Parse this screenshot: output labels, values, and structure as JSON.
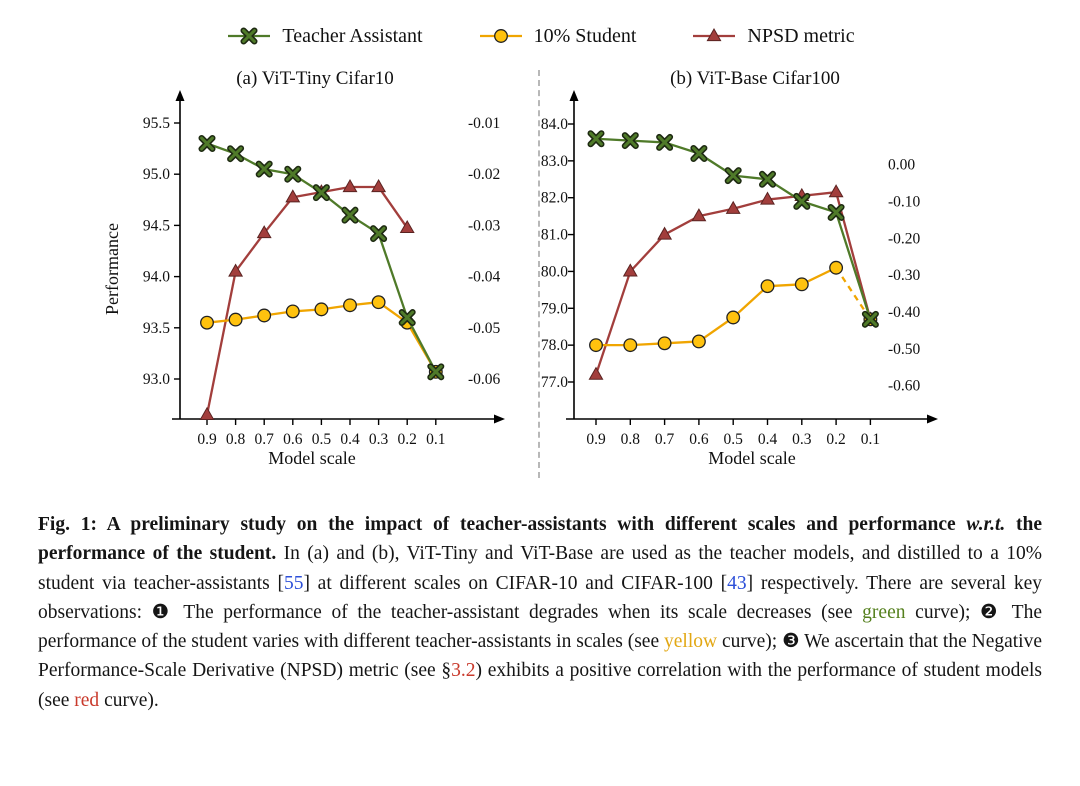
{
  "legend": {
    "items": [
      {
        "label": "Teacher Assistant",
        "marker": "x-cross",
        "color": "#4f7a29",
        "line_color": "#4f7a29"
      },
      {
        "label": "10% Student",
        "marker": "circle",
        "color": "#ffc20e",
        "line_color": "#f0a500"
      },
      {
        "label": "NPSD metric",
        "marker": "triangle",
        "color": "#a23e3c",
        "line_color": "#a23e3c"
      }
    ]
  },
  "colors": {
    "teacher_assistant_green": "#4f7a29",
    "student_yellow": "#ffc20e",
    "student_line_orange": "#f0a500",
    "npsd_red": "#a23e3c",
    "citation_blue": "#2c4fd8",
    "link_red": "#c93a2c",
    "divider_gray": "#b8b8b8"
  },
  "chart_data": [
    {
      "type": "line",
      "title": "(a) ViT-Tiny Cifar10",
      "xlabel": "Model scale",
      "ylabel": "Performance",
      "x_values": [
        0.9,
        0.8,
        0.7,
        0.6,
        0.5,
        0.4,
        0.3,
        0.2,
        0.1
      ],
      "x_ticks": [
        "0.9",
        "0.8",
        "0.7",
        "0.6",
        "0.5",
        "0.4",
        "0.3",
        "0.2",
        "0.1"
      ],
      "left_axis": {
        "ticks": [
          "95.5",
          "95.0",
          "94.5",
          "94.0",
          "93.5",
          "93.0"
        ],
        "tick_values": [
          95.5,
          95.0,
          94.5,
          94.0,
          93.5,
          93.0
        ],
        "range": [
          92.6,
          95.8
        ]
      },
      "right_axis": {
        "ticks": [
          "-0.01",
          "-0.02",
          "-0.03",
          "-0.04",
          "-0.05",
          "-0.06"
        ],
        "tick_values": [
          -0.01,
          -0.02,
          -0.03,
          -0.04,
          -0.05,
          -0.06
        ],
        "left_equiv_slope": 50,
        "left_equiv_intercept": 96
      },
      "series": [
        {
          "name": "NPSD metric",
          "axis": "right",
          "marker": "triangle",
          "color": "#a23e3c",
          "x": [
            0.9,
            0.8,
            0.7,
            0.6,
            0.5,
            0.4,
            0.3,
            0.2
          ],
          "values": [
            -0.067,
            -0.039,
            -0.0315,
            -0.0245,
            -0.0235,
            -0.0225,
            -0.0225,
            -0.0305
          ]
        },
        {
          "name": "10% Student",
          "axis": "left",
          "marker": "circle",
          "color": "#ffc20e",
          "line_color": "#f0a500",
          "values": [
            93.55,
            93.58,
            93.62,
            93.66,
            93.68,
            93.72,
            93.75,
            93.55,
            93.07
          ]
        },
        {
          "name": "Teacher Assistant",
          "axis": "left",
          "marker": "x-cross",
          "color": "#4f7a29",
          "values": [
            95.3,
            95.2,
            95.05,
            95.0,
            94.82,
            94.6,
            94.42,
            93.6,
            93.07
          ]
        }
      ]
    },
    {
      "type": "line",
      "title": "(b) ViT-Base Cifar100",
      "xlabel": "Model scale",
      "ylabel": "",
      "x_values": [
        0.9,
        0.8,
        0.7,
        0.6,
        0.5,
        0.4,
        0.3,
        0.2,
        0.1
      ],
      "x_ticks": [
        "0.9",
        "0.8",
        "0.7",
        "0.6",
        "0.5",
        "0.4",
        "0.3",
        "0.2",
        "0.1"
      ],
      "left_axis": {
        "ticks": [
          "84.0",
          "83.0",
          "82.0",
          "81.0",
          "80.0",
          "79.0",
          "78.0",
          "77.0"
        ],
        "tick_values": [
          84.0,
          83.0,
          82.0,
          81.0,
          80.0,
          79.0,
          78.0,
          77.0
        ],
        "range": [
          76.5,
          84.5
        ]
      },
      "right_axis": {
        "ticks": [
          "0.00",
          "-0.10",
          "-0.20",
          "-0.30",
          "-0.40",
          "-0.50",
          "-0.60"
        ],
        "tick_values": [
          0.0,
          -0.1,
          -0.2,
          -0.3,
          -0.4,
          -0.5,
          -0.6
        ],
        "left_equiv_slope": 10,
        "left_equiv_intercept": 82.9
      },
      "series": [
        {
          "name": "NPSD metric",
          "axis": "right",
          "marker": "triangle",
          "color": "#a23e3c",
          "values": [
            -0.57,
            -0.29,
            -0.19,
            -0.14,
            -0.12,
            -0.095,
            -0.085,
            -0.075,
            -0.42
          ]
        },
        {
          "name": "10% Student",
          "axis": "left",
          "marker": "circle",
          "color": "#ffc20e",
          "line_color": "#f0a500",
          "dash_from_index": 7,
          "values": [
            78.0,
            78.0,
            78.05,
            78.1,
            78.75,
            79.6,
            79.65,
            80.1,
            78.7
          ]
        },
        {
          "name": "Teacher Assistant",
          "axis": "left",
          "marker": "x-cross",
          "color": "#4f7a29",
          "values": [
            83.6,
            83.55,
            83.5,
            83.2,
            82.6,
            82.5,
            81.9,
            81.6,
            78.7
          ]
        }
      ]
    }
  ],
  "caption": {
    "segments": [
      {
        "style": "bold",
        "text": "Fig. 1: A preliminary study on the impact of teacher-assistants with different scales and performance "
      },
      {
        "style": "bolditalic",
        "text": "w.r.t."
      },
      {
        "style": "bold",
        "text": " the performance of the student."
      },
      {
        "style": "normal",
        "text": " In (a) and (b), ViT-Tiny and ViT-Base are used as the teacher models, and distilled to a 10% student via teacher-assistants ["
      },
      {
        "style": "blue",
        "text": "55",
        "name": "citation-link-55",
        "interactable": true
      },
      {
        "style": "normal",
        "text": "] at different scales on CIFAR-10 and CIFAR-100 ["
      },
      {
        "style": "blue",
        "text": "43",
        "name": "citation-link-43",
        "interactable": true
      },
      {
        "style": "normal",
        "text": "] respectively. There are several key observations: ❶ The performance of the teacher-assistant degrades when its scale decreases (see "
      },
      {
        "style": "green",
        "text": "green"
      },
      {
        "style": "normal",
        "text": " curve); ❷ The performance of the student varies with different teacher-assistants in scales (see "
      },
      {
        "style": "yellow",
        "text": "yellow"
      },
      {
        "style": "normal",
        "text": " curve); ❸ We ascertain that the Negative Performance-Scale Derivative (NPSD) metric (see §"
      },
      {
        "style": "red",
        "text": "3.2",
        "name": "section-link-3-2",
        "interactable": true
      },
      {
        "style": "normal",
        "text": ") exhibits a positive correlation with the performance of student models (see "
      },
      {
        "style": "red",
        "text": "red"
      },
      {
        "style": "normal",
        "text": " curve)."
      }
    ]
  }
}
